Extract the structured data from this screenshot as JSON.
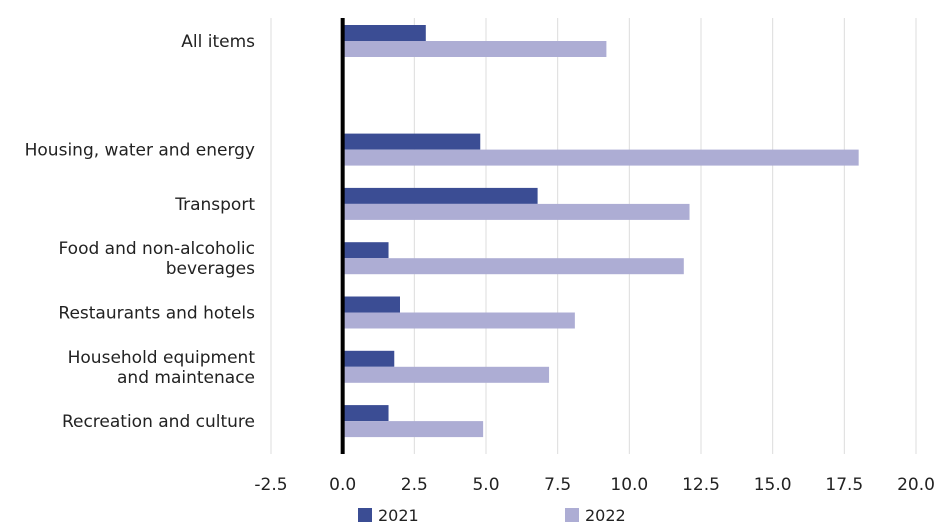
{
  "colors": {
    "series_2021": "#3b4d94",
    "series_2022": "#adadd4",
    "grid": "#dcdcdc",
    "zero_line": "#000000"
  },
  "chart_data": {
    "type": "bar",
    "orientation": "horizontal",
    "title": "",
    "xlabel": "",
    "ylabel": "",
    "xlim": [
      -2.5,
      20.0
    ],
    "x_ticks": [
      "-2.5",
      "0.0",
      "2.5",
      "5.0",
      "7.5",
      "10.0",
      "12.5",
      "15.0",
      "17.5",
      "20.0"
    ],
    "grid": "vertical",
    "legend_position": "bottom",
    "categories": [
      [
        "All items"
      ],
      [],
      [
        "Housing, water and energy"
      ],
      [
        "Transport"
      ],
      [
        "Food and non-alcoholic",
        "beverages"
      ],
      [
        "Restaurants and hotels"
      ],
      [
        "Household equipment",
        "and maintenace"
      ],
      [
        "Recreation and culture"
      ]
    ],
    "series": [
      {
        "name": "2021",
        "values": [
          2.9,
          null,
          4.8,
          6.8,
          1.6,
          2.0,
          1.8,
          1.6
        ]
      },
      {
        "name": "2022",
        "values": [
          9.2,
          null,
          18.0,
          12.1,
          11.9,
          8.1,
          7.2,
          4.9
        ]
      }
    ]
  }
}
